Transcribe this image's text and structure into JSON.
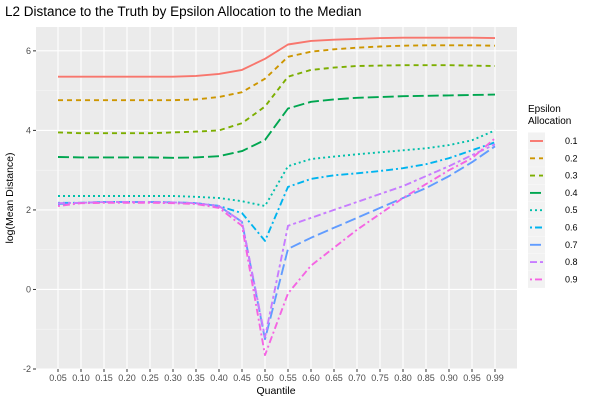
{
  "chart_data": {
    "type": "line",
    "title": "L2 Distance to the Truth by Epsilon Allocation to the Median",
    "xlabel": "Quantile",
    "ylabel": "log(Mean Distance)",
    "ylim": [
      -2,
      6.6
    ],
    "yticks": [
      -2,
      0,
      2,
      4,
      6
    ],
    "xticks": [
      "0.05",
      "0.10",
      "0.15",
      "0.20",
      "0.25",
      "0.30",
      "0.35",
      "0.40",
      "0.45",
      "0.50",
      "0.55",
      "0.60",
      "0.65",
      "0.70",
      "0.75",
      "0.80",
      "0.85",
      "0.90",
      "0.95",
      "0.99"
    ],
    "legend_title": "Epsilon\nAllocation",
    "legend_position": "right",
    "grid": true,
    "x": [
      0.05,
      0.1,
      0.15,
      0.2,
      0.25,
      0.3,
      0.35,
      0.4,
      0.45,
      0.5,
      0.55,
      0.6,
      0.65,
      0.7,
      0.75,
      0.8,
      0.85,
      0.9,
      0.95,
      0.99
    ],
    "series": [
      {
        "name": "0.1",
        "color": "#F8766D",
        "dash": "solid",
        "values": [
          5.35,
          5.35,
          5.35,
          5.35,
          5.35,
          5.35,
          5.37,
          5.42,
          5.52,
          5.8,
          6.16,
          6.25,
          6.28,
          6.3,
          6.32,
          6.33,
          6.33,
          6.33,
          6.33,
          6.32
        ]
      },
      {
        "name": "0.2",
        "color": "#CD9600",
        "dash": "dashed",
        "values": [
          4.76,
          4.76,
          4.76,
          4.76,
          4.76,
          4.76,
          4.78,
          4.84,
          4.96,
          5.3,
          5.85,
          5.98,
          6.04,
          6.08,
          6.11,
          6.13,
          6.14,
          6.14,
          6.14,
          6.13
        ]
      },
      {
        "name": "0.3",
        "color": "#7CAE00",
        "dash": "dashed",
        "values": [
          3.95,
          3.93,
          3.93,
          3.93,
          3.93,
          3.95,
          3.97,
          4.0,
          4.18,
          4.6,
          5.35,
          5.52,
          5.58,
          5.62,
          5.63,
          5.64,
          5.64,
          5.64,
          5.63,
          5.62
        ]
      },
      {
        "name": "0.4",
        "color": "#00A650",
        "dash": "longdash",
        "values": [
          3.33,
          3.32,
          3.32,
          3.32,
          3.32,
          3.31,
          3.32,
          3.35,
          3.48,
          3.76,
          4.55,
          4.72,
          4.78,
          4.82,
          4.84,
          4.86,
          4.87,
          4.88,
          4.89,
          4.9
        ]
      },
      {
        "name": "0.5",
        "color": "#00BFAA",
        "dash": "dotted",
        "values": [
          2.35,
          2.35,
          2.35,
          2.35,
          2.35,
          2.35,
          2.33,
          2.3,
          2.22,
          2.1,
          3.1,
          3.28,
          3.34,
          3.4,
          3.45,
          3.5,
          3.55,
          3.63,
          3.75,
          4.0
        ]
      },
      {
        "name": "0.6",
        "color": "#00B4EF",
        "dash": "dotdash",
        "values": [
          2.18,
          2.18,
          2.2,
          2.2,
          2.2,
          2.19,
          2.17,
          2.1,
          1.92,
          1.22,
          2.58,
          2.78,
          2.87,
          2.92,
          2.98,
          3.05,
          3.15,
          3.3,
          3.5,
          3.7
        ]
      },
      {
        "name": "0.7",
        "color": "#619CFF",
        "dash": "longdash",
        "values": [
          2.15,
          2.18,
          2.2,
          2.2,
          2.2,
          2.19,
          2.17,
          2.1,
          1.7,
          -1.25,
          1.02,
          1.3,
          1.55,
          1.8,
          2.05,
          2.3,
          2.55,
          2.85,
          3.2,
          3.6
        ]
      },
      {
        "name": "0.8",
        "color": "#C77CFF",
        "dash": "twodash",
        "values": [
          2.17,
          2.18,
          2.2,
          2.2,
          2.2,
          2.19,
          2.17,
          2.1,
          1.7,
          -1.2,
          1.6,
          1.8,
          2.0,
          2.2,
          2.4,
          2.6,
          2.85,
          3.1,
          3.38,
          3.65
        ]
      },
      {
        "name": "0.9",
        "color": "#F564E3",
        "dash": "dotdash",
        "values": [
          2.1,
          2.17,
          2.18,
          2.18,
          2.18,
          2.17,
          2.15,
          2.05,
          1.6,
          -1.65,
          -0.1,
          0.6,
          1.05,
          1.5,
          1.9,
          2.3,
          2.65,
          3.0,
          3.3,
          3.8
        ]
      }
    ]
  }
}
